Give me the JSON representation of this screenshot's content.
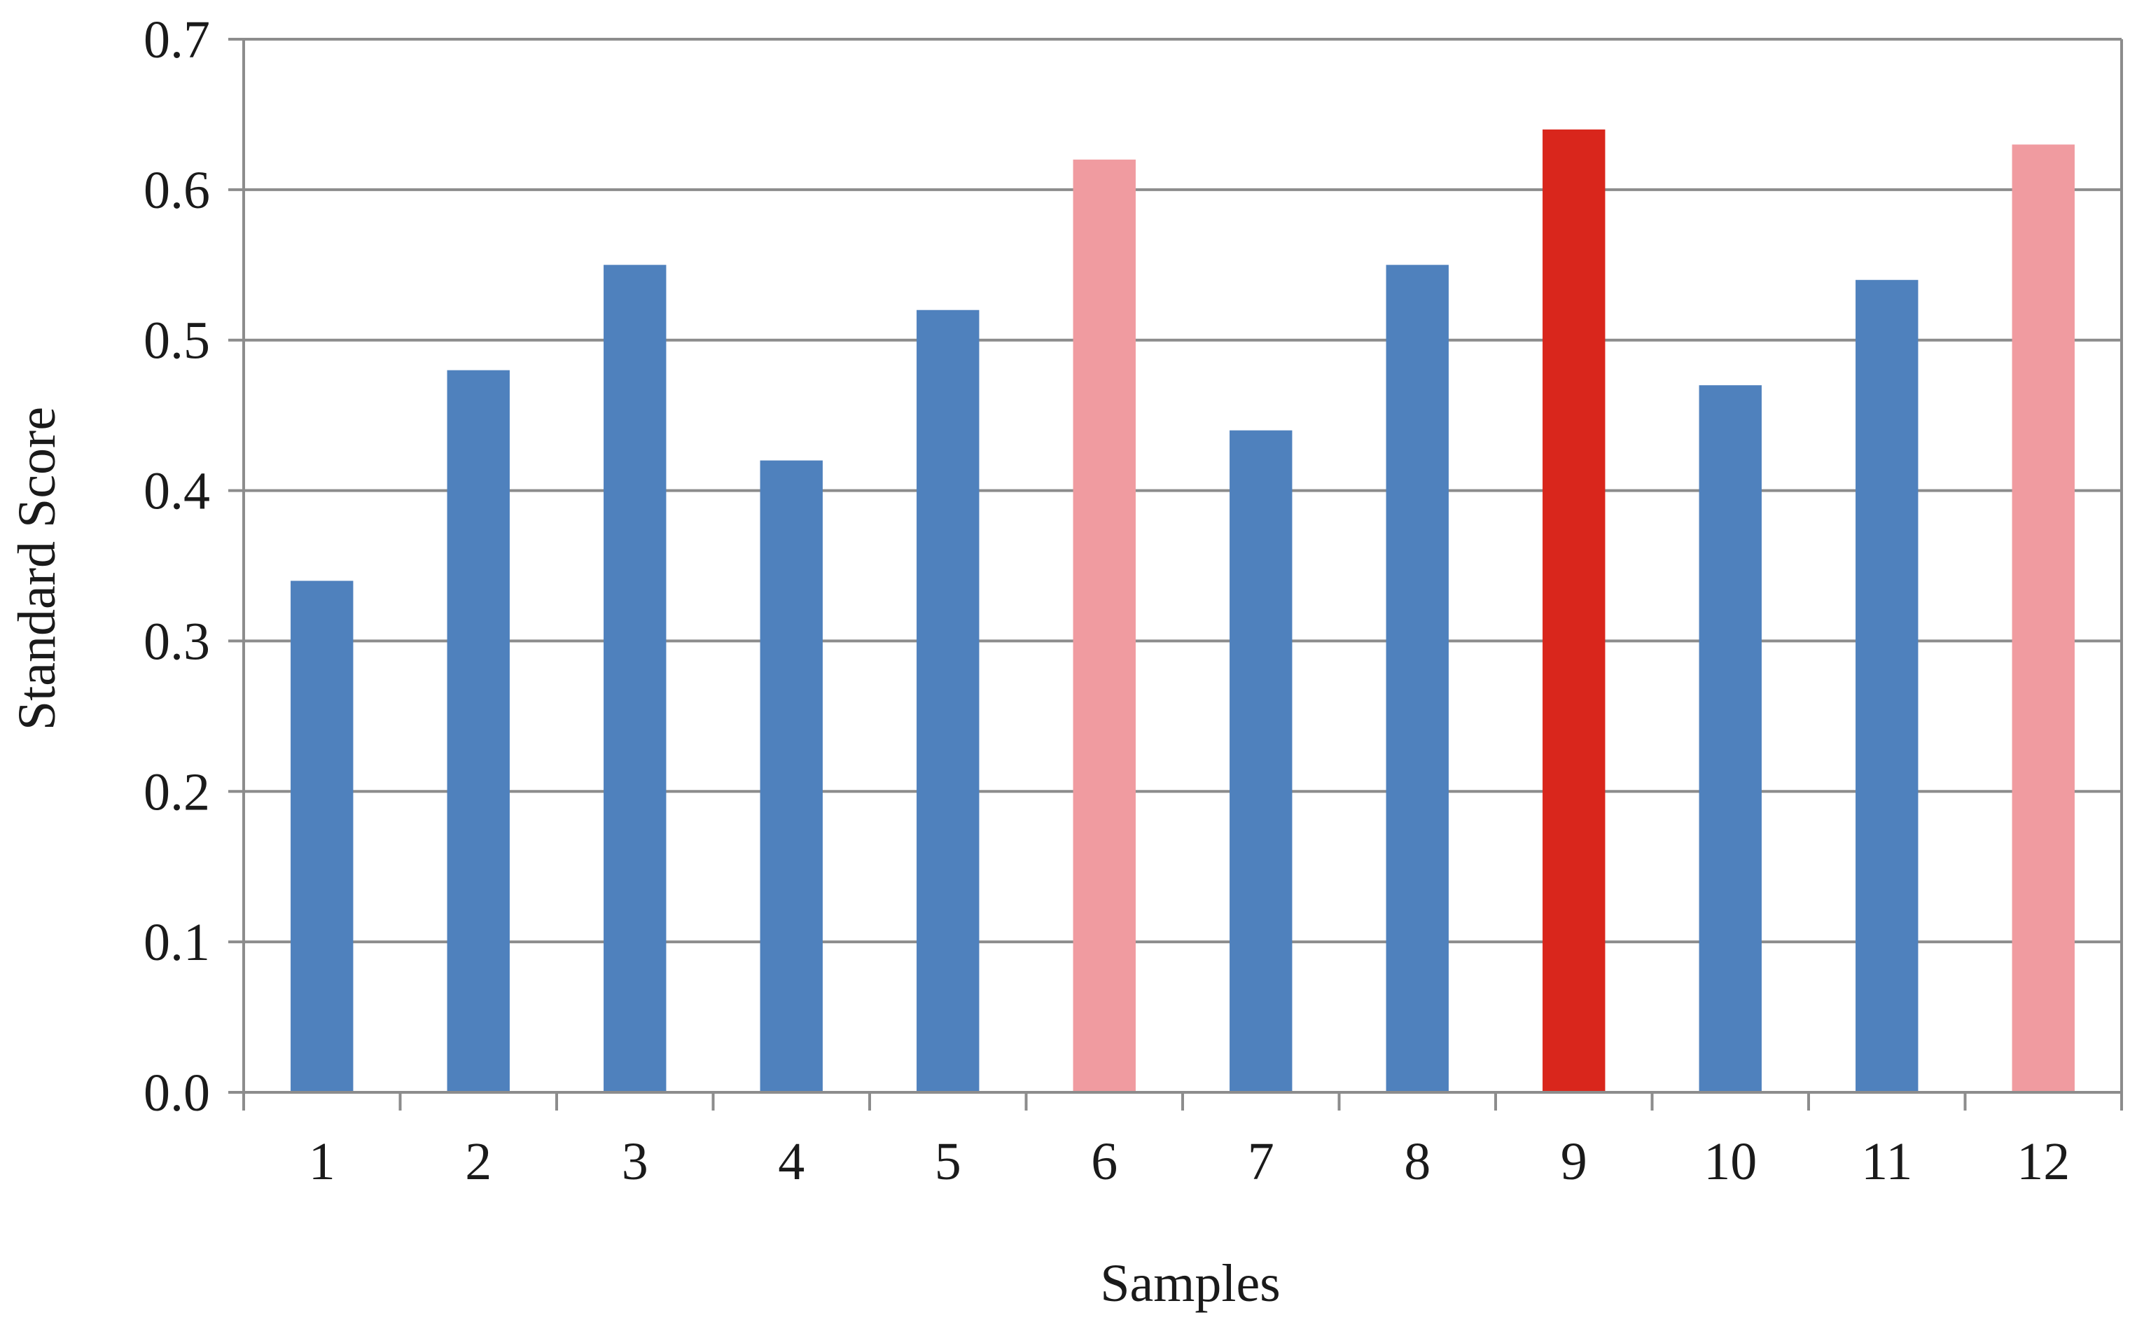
{
  "chart_data": {
    "type": "bar",
    "title": "",
    "xlabel": "Samples",
    "ylabel": "Standard Score",
    "ylim": [
      0,
      0.7
    ],
    "y_ticks": [
      "0.0",
      "0.1",
      "0.2",
      "0.3",
      "0.4",
      "0.5",
      "0.6",
      "0.7"
    ],
    "y_tick_values": [
      0,
      0.1,
      0.2,
      0.3,
      0.4,
      0.5,
      0.6,
      0.7
    ],
    "grid": true,
    "categories": [
      "1",
      "2",
      "3",
      "4",
      "5",
      "6",
      "7",
      "8",
      "9",
      "10",
      "11",
      "12"
    ],
    "values": [
      0.34,
      0.48,
      0.55,
      0.42,
      0.52,
      0.62,
      0.44,
      0.55,
      0.64,
      0.47,
      0.54,
      0.63
    ],
    "bar_colors": [
      "#4f81bd",
      "#4f81bd",
      "#4f81bd",
      "#4f81bd",
      "#4f81bd",
      "#f09ba0",
      "#4f81bd",
      "#4f81bd",
      "#d9261c",
      "#4f81bd",
      "#4f81bd",
      "#f09ba0"
    ],
    "colors": {
      "grid": "#8c8c8c",
      "axis": "#8c8c8c",
      "text": "#1a1a1a"
    }
  }
}
